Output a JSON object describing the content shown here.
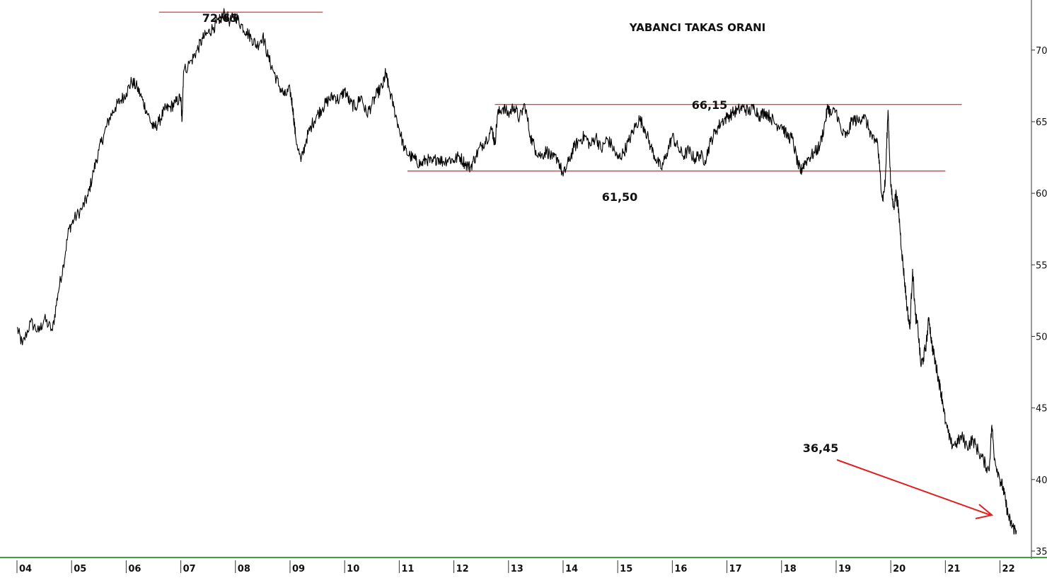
{
  "chart_data": {
    "type": "line",
    "title": "YABANCI TAKAS ORANI",
    "xlabel": "",
    "ylabel": "",
    "x_tick_labels": [
      "04",
      "05",
      "06",
      "07",
      "08",
      "09",
      "10",
      "11",
      "12",
      "13",
      "14",
      "15",
      "16",
      "17",
      "18",
      "19",
      "20",
      "21",
      "22"
    ],
    "y_tick_labels": [
      "35,",
      "40,",
      "45,",
      "50,",
      "55,",
      "60,",
      "65,",
      "70,"
    ],
    "y_ticks": [
      35,
      40,
      45,
      50,
      55,
      60,
      65,
      70
    ],
    "ylim": [
      34.8,
      73.5
    ],
    "xlim": [
      2004.0,
      2022.55
    ],
    "grid": false,
    "legend": "none",
    "series": [
      {
        "values": [
          [
            2004.0,
            50.6
          ],
          [
            2004.1,
            49.4
          ],
          [
            2004.25,
            51.0
          ],
          [
            2004.4,
            50.3
          ],
          [
            2004.5,
            51.2
          ],
          [
            2004.65,
            50.4
          ],
          [
            2004.75,
            53.0
          ],
          [
            2004.85,
            55.0
          ],
          [
            2004.95,
            57.5
          ],
          [
            2005.05,
            58.2
          ],
          [
            2005.2,
            59.0
          ],
          [
            2005.3,
            59.8
          ],
          [
            2005.4,
            61.5
          ],
          [
            2005.5,
            63.0
          ],
          [
            2005.6,
            64.2
          ],
          [
            2005.7,
            65.3
          ],
          [
            2005.8,
            66.0
          ],
          [
            2005.9,
            66.5
          ],
          [
            2006.0,
            67.0
          ],
          [
            2006.1,
            67.8
          ],
          [
            2006.2,
            67.4
          ],
          [
            2006.3,
            66.5
          ],
          [
            2006.4,
            65.5
          ],
          [
            2006.5,
            64.5
          ],
          [
            2006.6,
            65.0
          ],
          [
            2006.7,
            65.8
          ],
          [
            2006.8,
            66.0
          ],
          [
            2006.9,
            66.3
          ],
          [
            2007.0,
            66.7
          ],
          [
            2007.02,
            65.0
          ],
          [
            2007.05,
            68.5
          ],
          [
            2007.2,
            69.3
          ],
          [
            2007.3,
            70.0
          ],
          [
            2007.4,
            70.8
          ],
          [
            2007.5,
            71.2
          ],
          [
            2007.6,
            71.6
          ],
          [
            2007.7,
            72.0
          ],
          [
            2007.8,
            72.6
          ],
          [
            2007.9,
            72.0
          ],
          [
            2008.0,
            72.4
          ],
          [
            2008.1,
            71.8
          ],
          [
            2008.2,
            71.3
          ],
          [
            2008.3,
            70.8
          ],
          [
            2008.4,
            70.3
          ],
          [
            2008.5,
            71.0
          ],
          [
            2008.6,
            69.5
          ],
          [
            2008.7,
            68.5
          ],
          [
            2008.8,
            67.5
          ],
          [
            2008.9,
            66.8
          ],
          [
            2009.0,
            67.2
          ],
          [
            2009.05,
            66.0
          ],
          [
            2009.1,
            64.0
          ],
          [
            2009.2,
            62.2
          ],
          [
            2009.3,
            63.8
          ],
          [
            2009.4,
            64.8
          ],
          [
            2009.5,
            65.5
          ],
          [
            2009.6,
            66.0
          ],
          [
            2009.7,
            66.5
          ],
          [
            2009.8,
            66.8
          ],
          [
            2009.9,
            66.5
          ],
          [
            2010.0,
            67.2
          ],
          [
            2010.1,
            66.3
          ],
          [
            2010.2,
            66.0
          ],
          [
            2010.3,
            66.8
          ],
          [
            2010.4,
            65.5
          ],
          [
            2010.5,
            66.2
          ],
          [
            2010.6,
            67.0
          ],
          [
            2010.7,
            67.5
          ],
          [
            2010.75,
            68.4
          ],
          [
            2010.8,
            67.5
          ],
          [
            2010.9,
            66.0
          ],
          [
            2011.0,
            64.5
          ],
          [
            2011.1,
            63.0
          ],
          [
            2011.2,
            62.6
          ],
          [
            2011.3,
            62.3
          ],
          [
            2011.4,
            62.0
          ],
          [
            2011.5,
            62.4
          ],
          [
            2011.6,
            62.1
          ],
          [
            2011.7,
            62.5
          ],
          [
            2011.8,
            62.2
          ],
          [
            2011.9,
            62.4
          ],
          [
            2012.0,
            62.3
          ],
          [
            2012.1,
            62.6
          ],
          [
            2012.2,
            62.1
          ],
          [
            2012.3,
            61.8
          ],
          [
            2012.4,
            62.6
          ],
          [
            2012.5,
            63.3
          ],
          [
            2012.6,
            63.8
          ],
          [
            2012.7,
            64.5
          ],
          [
            2012.75,
            63.4
          ],
          [
            2012.8,
            65.5
          ],
          [
            2012.9,
            66.0
          ],
          [
            2013.0,
            65.5
          ],
          [
            2013.1,
            66.1
          ],
          [
            2013.2,
            65.2
          ],
          [
            2013.3,
            66.2
          ],
          [
            2013.4,
            64.0
          ],
          [
            2013.5,
            63.0
          ],
          [
            2013.6,
            62.6
          ],
          [
            2013.7,
            63.0
          ],
          [
            2013.8,
            62.4
          ],
          [
            2013.9,
            62.5
          ],
          [
            2014.0,
            61.2
          ],
          [
            2014.1,
            62.2
          ],
          [
            2014.2,
            63.2
          ],
          [
            2014.3,
            63.7
          ],
          [
            2014.4,
            64.0
          ],
          [
            2014.5,
            63.3
          ],
          [
            2014.6,
            64.0
          ],
          [
            2014.7,
            63.0
          ],
          [
            2014.8,
            63.8
          ],
          [
            2014.9,
            63.3
          ],
          [
            2015.0,
            62.4
          ],
          [
            2015.1,
            62.8
          ],
          [
            2015.2,
            63.6
          ],
          [
            2015.3,
            64.5
          ],
          [
            2015.4,
            65.2
          ],
          [
            2015.5,
            64.5
          ],
          [
            2015.6,
            63.3
          ],
          [
            2015.7,
            62.4
          ],
          [
            2015.8,
            61.7
          ],
          [
            2015.9,
            62.8
          ],
          [
            2016.0,
            64.0
          ],
          [
            2016.1,
            63.2
          ],
          [
            2016.2,
            62.6
          ],
          [
            2016.3,
            63.0
          ],
          [
            2016.4,
            62.4
          ],
          [
            2016.5,
            62.7
          ],
          [
            2016.6,
            62.3
          ],
          [
            2016.7,
            63.6
          ],
          [
            2016.8,
            64.4
          ],
          [
            2016.9,
            65.0
          ],
          [
            2017.0,
            65.3
          ],
          [
            2017.1,
            65.6
          ],
          [
            2017.2,
            65.8
          ],
          [
            2017.3,
            66.0
          ],
          [
            2017.4,
            65.7
          ],
          [
            2017.5,
            66.0
          ],
          [
            2017.6,
            65.4
          ],
          [
            2017.7,
            65.7
          ],
          [
            2017.8,
            65.3
          ],
          [
            2017.9,
            64.8
          ],
          [
            2018.0,
            64.8
          ],
          [
            2018.1,
            64.0
          ],
          [
            2018.2,
            63.8
          ],
          [
            2018.3,
            62.0
          ],
          [
            2018.35,
            61.5
          ],
          [
            2018.4,
            62.0
          ],
          [
            2018.5,
            62.5
          ],
          [
            2018.6,
            62.8
          ],
          [
            2018.7,
            63.3
          ],
          [
            2018.8,
            65.0
          ],
          [
            2018.85,
            66.1
          ],
          [
            2018.9,
            65.5
          ],
          [
            2019.0,
            65.8
          ],
          [
            2019.1,
            64.2
          ],
          [
            2019.2,
            64.0
          ],
          [
            2019.3,
            65.2
          ],
          [
            2019.4,
            65.0
          ],
          [
            2019.5,
            65.5
          ],
          [
            2019.6,
            64.5
          ],
          [
            2019.7,
            63.5
          ],
          [
            2019.75,
            63.8
          ],
          [
            2019.8,
            61.5
          ],
          [
            2019.85,
            59.5
          ],
          [
            2019.9,
            60.8
          ],
          [
            2019.95,
            65.8
          ],
          [
            2020.0,
            60.5
          ],
          [
            2020.05,
            59.0
          ],
          [
            2020.1,
            60.0
          ],
          [
            2020.15,
            58.5
          ],
          [
            2020.2,
            56.0
          ],
          [
            2020.25,
            54.0
          ],
          [
            2020.3,
            52.0
          ],
          [
            2020.35,
            50.5
          ],
          [
            2020.4,
            54.7
          ],
          [
            2020.45,
            51.5
          ],
          [
            2020.5,
            50.5
          ],
          [
            2020.55,
            48.0
          ],
          [
            2020.6,
            48.5
          ],
          [
            2020.65,
            49.5
          ],
          [
            2020.7,
            51.3
          ],
          [
            2020.75,
            49.5
          ],
          [
            2020.8,
            48.5
          ],
          [
            2020.85,
            47.5
          ],
          [
            2020.9,
            46.5
          ],
          [
            2020.95,
            45.5
          ],
          [
            2021.0,
            44.0
          ],
          [
            2021.1,
            42.5
          ],
          [
            2021.2,
            42.5
          ],
          [
            2021.3,
            43.0
          ],
          [
            2021.4,
            42.3
          ],
          [
            2021.5,
            42.8
          ],
          [
            2021.6,
            42.0
          ],
          [
            2021.7,
            41.3
          ],
          [
            2021.8,
            40.6
          ],
          [
            2021.85,
            43.8
          ],
          [
            2021.9,
            41.5
          ],
          [
            2022.0,
            40.0
          ],
          [
            2022.05,
            39.5
          ],
          [
            2022.1,
            38.5
          ],
          [
            2022.15,
            37.5
          ],
          [
            2022.2,
            36.9
          ],
          [
            2022.25,
            36.6
          ],
          [
            2022.3,
            36.45
          ]
        ]
      }
    ],
    "reference_lines": [
      {
        "label": "72,65",
        "y": 72.65,
        "x_start": 2006.6,
        "x_end": 2009.6
      },
      {
        "label": "66,15",
        "y": 66.2,
        "x_start": 2012.75,
        "x_end": 2021.3
      },
      {
        "label": "61,50",
        "y": 61.55,
        "x_start": 2011.15,
        "x_end": 2021.0
      }
    ],
    "annotations": [
      {
        "label": "36,45",
        "arrow": true
      }
    ],
    "colors": {
      "series_line": "#000000",
      "reference_line": "#e02020",
      "arrow": "#e02020",
      "axis": "#333333",
      "bottom_border": "#3aa04a"
    }
  }
}
